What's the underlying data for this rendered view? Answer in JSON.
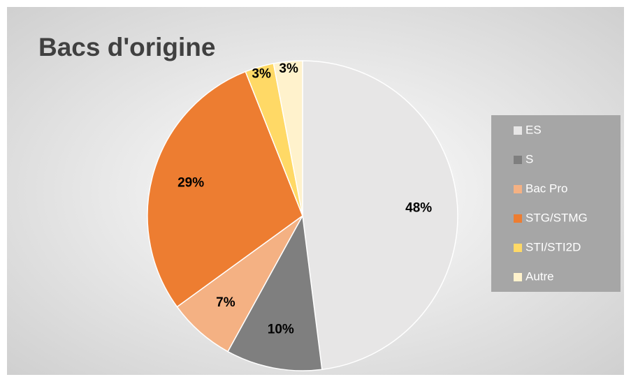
{
  "chart_data": {
    "type": "pie",
    "title": "Bacs d'origine",
    "categories": [
      "ES",
      "S",
      "Bac Pro",
      "STG/STMG",
      "STI/STI2D",
      "Autre"
    ],
    "values": [
      48,
      10,
      7,
      29,
      3,
      3
    ],
    "value_labels": [
      "48%",
      "10%",
      "7%",
      "29%",
      "3%",
      "3%"
    ],
    "colors": [
      "#e7e6e6",
      "#7f7f7f",
      "#f4b183",
      "#ed7d31",
      "#ffd966",
      "#fff2cc"
    ],
    "legend": "right"
  }
}
